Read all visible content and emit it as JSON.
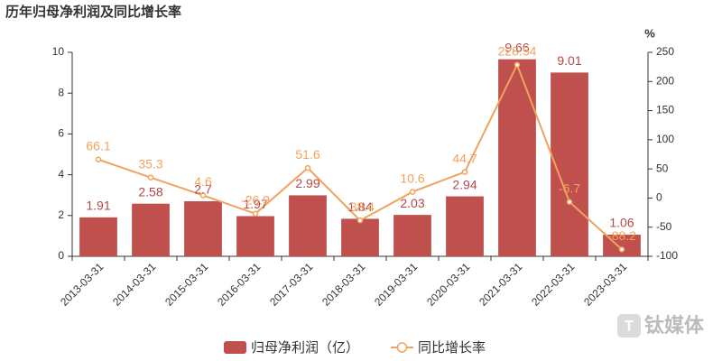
{
  "chart_data": {
    "type": "bar-line",
    "title": "历年归母净利润及同比增长率",
    "y2_unit": "%",
    "watermark": "钛媒体",
    "categories": [
      "2013-03-31",
      "2014-03-31",
      "2015-03-31",
      "2016-03-31",
      "2017-03-31",
      "2018-03-31",
      "2019-03-31",
      "2020-03-31",
      "2021-03-31",
      "2022-03-31",
      "2023-03-31"
    ],
    "series": [
      {
        "name": "归母净利润（亿）",
        "color": "#c0504d",
        "label_color": "#b5474a",
        "values": [
          1.91,
          2.58,
          2.7,
          1.97,
          2.99,
          1.84,
          2.03,
          2.94,
          9.66,
          9.01,
          1.06
        ]
      },
      {
        "name": "同比增长率",
        "color": "#f0a35e",
        "axis": "y2",
        "values": [
          66.1,
          35.3,
          4.6,
          -26.9,
          51.6,
          -38.4,
          10.6,
          44.7,
          228.54,
          -6.7,
          -88.2
        ]
      }
    ],
    "ylim": [
      0,
      10
    ],
    "yticks": [
      0,
      2,
      4,
      6,
      8,
      10
    ],
    "y2lim": [
      -100,
      250
    ],
    "y2ticks": [
      -100,
      -50,
      0,
      50,
      100,
      150,
      200,
      250
    ]
  }
}
